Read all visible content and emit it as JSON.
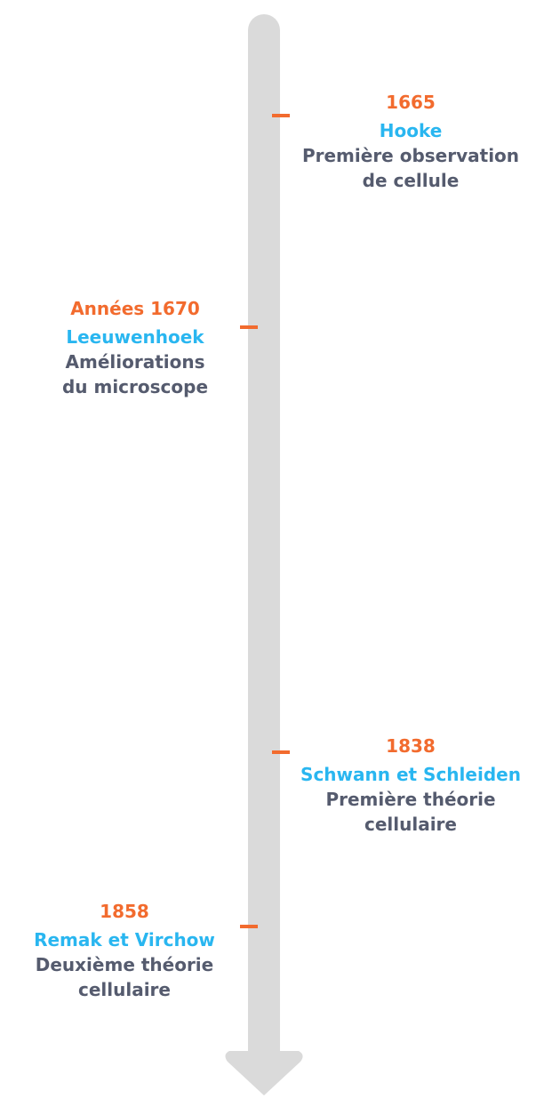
{
  "colors": {
    "axis": "#dadada",
    "tick": "#f26b2e",
    "date": "#f26b2e",
    "name": "#29b6f0",
    "description": "#555b6e"
  },
  "events": [
    {
      "date": "1665",
      "name": "Hooke",
      "description_line1": "Première observation",
      "description_line2": "de cellule",
      "side": "right"
    },
    {
      "date": "Années 1670",
      "name": "Leeuwenhoek",
      "description_line1": "Améliorations",
      "description_line2": "du microscope",
      "side": "left"
    },
    {
      "date": "1838",
      "name": "Schwann et Schleiden",
      "description_line1": "Première théorie",
      "description_line2": "cellulaire",
      "side": "right"
    },
    {
      "date": "1858",
      "name": "Remak et Virchow",
      "description_line1": "Deuxième théorie",
      "description_line2": "cellulaire",
      "side": "left"
    }
  ]
}
